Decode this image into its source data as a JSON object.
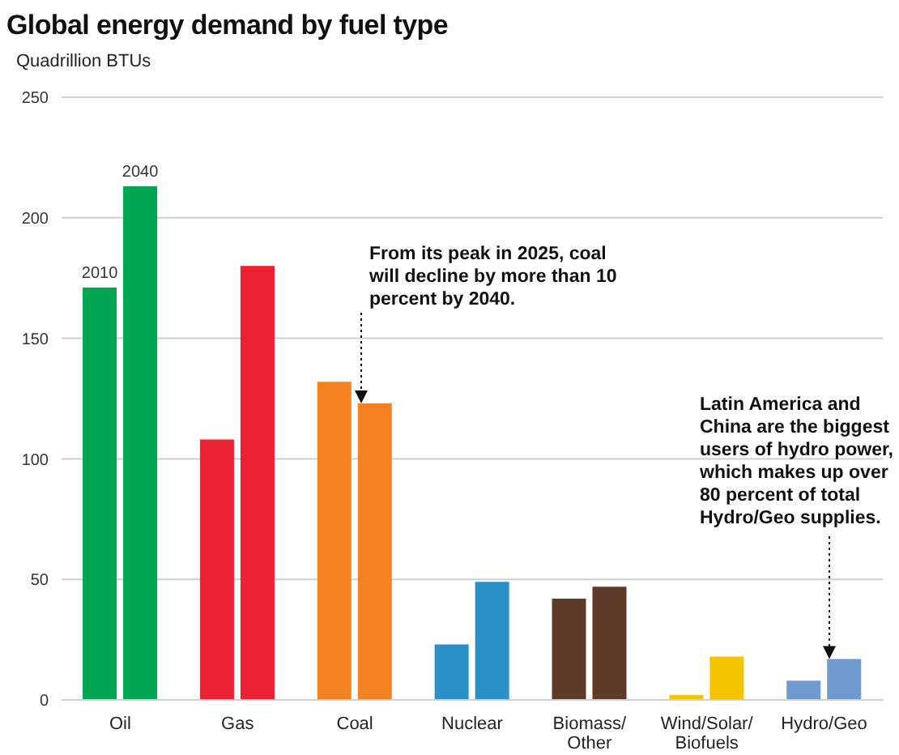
{
  "chart_data": {
    "type": "bar",
    "title": "Global energy demand by fuel type",
    "ylabel": "Quadrillion BTUs",
    "categories": [
      "Oil",
      "Gas",
      "Coal",
      "Nuclear",
      "Biomass/Other",
      "Wind/Solar/Biofuels",
      "Hydro/Geo"
    ],
    "series": [
      {
        "name": "2010",
        "colors": [
          "#00a651",
          "#ec2233",
          "#f58220",
          "#2b8fc8",
          "#5e3b29",
          "#f5c400",
          "#7099d0"
        ],
        "values": [
          171,
          108,
          132,
          23,
          42,
          2,
          8
        ]
      },
      {
        "name": "2040",
        "colors": [
          "#00a651",
          "#ec2233",
          "#f58220",
          "#2b8fc8",
          "#5e3b29",
          "#f5c400",
          "#7099d0"
        ],
        "values": [
          213,
          180,
          123,
          49,
          47,
          18,
          17
        ]
      }
    ],
    "ylim": [
      0,
      250
    ],
    "yticks": [
      0,
      50,
      100,
      150,
      200,
      250
    ],
    "grid": "y",
    "legend": false,
    "annotations": [
      {
        "text": "From its peak in 2025, coal will decline by more than 10 percent by 2040.",
        "x": "Coal",
        "y": 123
      },
      {
        "text": "Latin America and China are the biggest users of hydro power, which makes up over 80 percent of total Hydro/Geo supplies.",
        "x": "Hydro/Geo",
        "y": 17
      }
    ]
  }
}
